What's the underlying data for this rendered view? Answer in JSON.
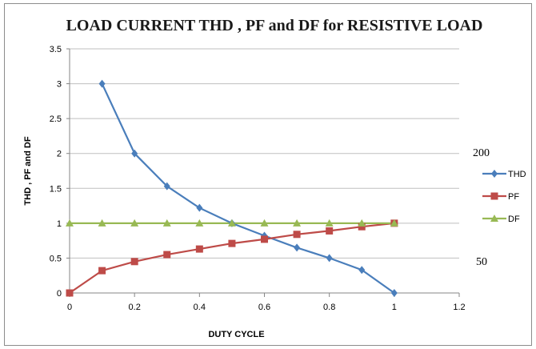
{
  "chart_data": {
    "type": "line",
    "title": "LOAD CURRENT THD , PF and DF for RESISTIVE  LOAD",
    "xlabel": "DUTY CYCLE",
    "ylabel": "THD , PF and DF",
    "xlim": [
      0,
      1.2
    ],
    "ylim": [
      0,
      3.5
    ],
    "x_ticks": [
      "0",
      "0.2",
      "0.4",
      "0.6",
      "0.8",
      "1",
      "1.2"
    ],
    "y_ticks": [
      "0",
      "0.5",
      "1",
      "1.5",
      "2",
      "2.5",
      "3",
      "3.5"
    ],
    "grid": "horizontal",
    "legend_position": "right",
    "side_labels": [
      "200",
      "50"
    ],
    "series": [
      {
        "name": "THD",
        "color": "#4a7ebb",
        "marker": "diamond",
        "x": [
          0.1,
          0.2,
          0.3,
          0.4,
          0.5,
          0.6,
          0.7,
          0.8,
          0.9,
          1.0
        ],
        "y": [
          3.0,
          2.0,
          1.53,
          1.22,
          1.0,
          0.82,
          0.65,
          0.5,
          0.33,
          0.0
        ]
      },
      {
        "name": "PF",
        "color": "#be4b48",
        "marker": "square",
        "x": [
          0,
          0.1,
          0.2,
          0.3,
          0.4,
          0.5,
          0.6,
          0.7,
          0.8,
          0.9,
          1.0
        ],
        "y": [
          0,
          0.32,
          0.45,
          0.55,
          0.63,
          0.71,
          0.77,
          0.84,
          0.89,
          0.95,
          1.0
        ]
      },
      {
        "name": "DF",
        "color": "#98b954",
        "marker": "triangle",
        "x": [
          0,
          0.1,
          0.2,
          0.3,
          0.4,
          0.5,
          0.6,
          0.7,
          0.8,
          0.9,
          1.0
        ],
        "y": [
          1,
          1,
          1,
          1,
          1,
          1,
          1,
          1,
          1,
          1,
          1
        ]
      }
    ]
  }
}
